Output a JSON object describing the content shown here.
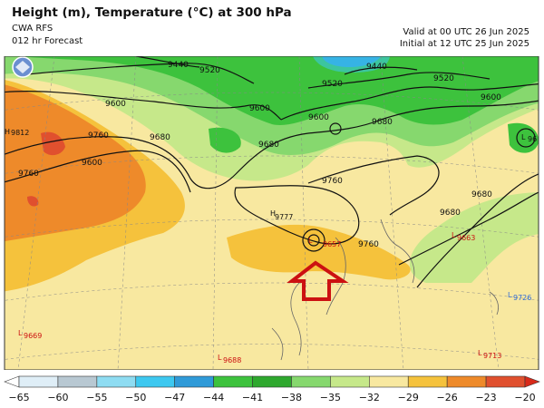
{
  "header": {
    "title": "Height (m), Temperature (°C) at 300 hPa",
    "model": "CWA RFS",
    "forecast": "012 hr Forecast",
    "valid": "Valid at 00 UTC 26 Jun 2025",
    "initial": "Initial at 12 UTC 25 Jun 2025"
  },
  "map": {
    "contour_labels": [
      "9440",
      "9520",
      "9600",
      "9680",
      "9760",
      "9440",
      "9520",
      "9600",
      "9680",
      "9760",
      "9520",
      "9600",
      "9680",
      "9600",
      "9680",
      "9760",
      "9680",
      "9600",
      "9760"
    ],
    "centers": [
      {
        "type": "H",
        "value": "9812"
      },
      {
        "type": "H",
        "value": "9777"
      },
      {
        "type": "L",
        "value": "9657"
      },
      {
        "type": "L",
        "value": "9663"
      },
      {
        "type": "L",
        "value": "9669"
      },
      {
        "type": "L",
        "value": "9688"
      },
      {
        "type": "L",
        "value": "9713"
      },
      {
        "type": "L",
        "value": "9726"
      },
      {
        "type": "L",
        "value": "96"
      }
    ],
    "arrow_color": "#cc1111"
  },
  "colorbar": {
    "labels": [
      "−65",
      "−60",
      "−55",
      "−50",
      "−47",
      "−44",
      "−41",
      "−38",
      "−35",
      "−32",
      "−29",
      "−26",
      "−23",
      "−20"
    ],
    "colors": [
      "#ffffff",
      "#dfeef7",
      "#b8c8d2",
      "#8edcf2",
      "#3dc8f0",
      "#2f9ad8",
      "#3dc23d",
      "#2ea82e",
      "#86d86e",
      "#c6e88a",
      "#f8e8a0",
      "#f5c23c",
      "#ee8a2a",
      "#e0502e",
      "#d82a1a"
    ]
  }
}
